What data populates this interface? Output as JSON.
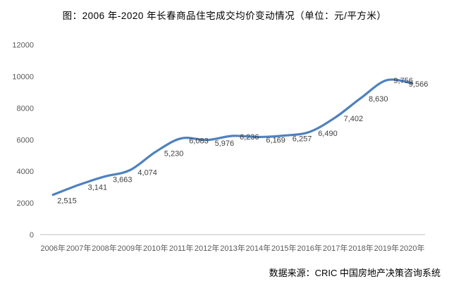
{
  "title": "图：2006 年-2020 年长春商品住宅成交均价变动情况（单位：元/平方米）",
  "source": "数据来源：CRIC 中国房地产决策咨询系统",
  "chart_data": {
    "type": "line",
    "title": "图：2006 年-2020 年长春商品住宅成交均价变动情况（单位：元/平方米）",
    "categories": [
      "2006年",
      "2007年",
      "2008年",
      "2009年",
      "2010年",
      "2011年",
      "2012年",
      "2013年",
      "2014年",
      "2015年",
      "2016年",
      "2017年",
      "2018年",
      "2019年",
      "2020年"
    ],
    "values": [
      2515,
      3141,
      3663,
      4074,
      5230,
      6083,
      5976,
      6236,
      6169,
      6257,
      6490,
      7402,
      8630,
      9756,
      9566
    ],
    "data_labels": [
      "2,515",
      "3,141",
      "3,663",
      "4,074",
      "5,230",
      "6,083",
      "5,976",
      "6,236",
      "6,169",
      "6,257",
      "6,490",
      "7,402",
      "8,630",
      "9,756",
      "9,566"
    ],
    "xlabel": "",
    "ylabel": "",
    "ylim": [
      0,
      12000
    ],
    "yticks": [
      0,
      2000,
      4000,
      6000,
      8000,
      10000,
      12000
    ],
    "grid": false,
    "legend": false,
    "smooth": true,
    "colors": {
      "line": "#4F81BD",
      "axis_line": "#BFBFBF",
      "tick_text": "#595959",
      "label_text": "#3F3F3F",
      "title_text": "#000000"
    }
  }
}
